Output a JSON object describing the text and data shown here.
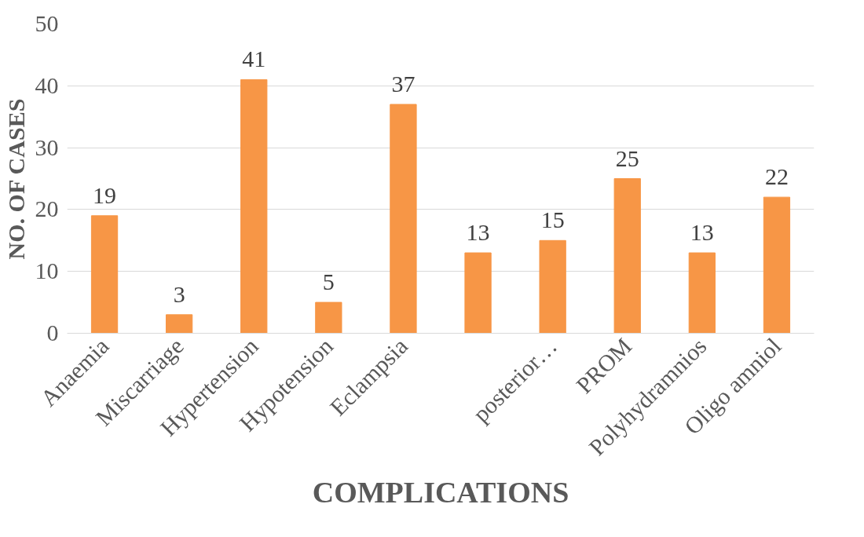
{
  "chart_data": {
    "type": "bar",
    "xlabel": "COMPLICATIONS",
    "ylabel": "NO. OF CASES",
    "categories": [
      "Anaemia",
      "Miscarriage",
      "Hypertension",
      "Hypotension",
      "Eclampsia",
      null,
      "posterior…",
      "PROM",
      "Polyhydramnios",
      "Oligo amniol"
    ],
    "values": [
      19,
      3,
      41,
      5,
      37,
      13,
      15,
      25,
      13,
      22
    ],
    "color": "#f79646",
    "ylim": [
      0,
      50
    ],
    "yticks": [
      0,
      10,
      20,
      30,
      40,
      50
    ],
    "grid": "y",
    "data_labels": true
  }
}
